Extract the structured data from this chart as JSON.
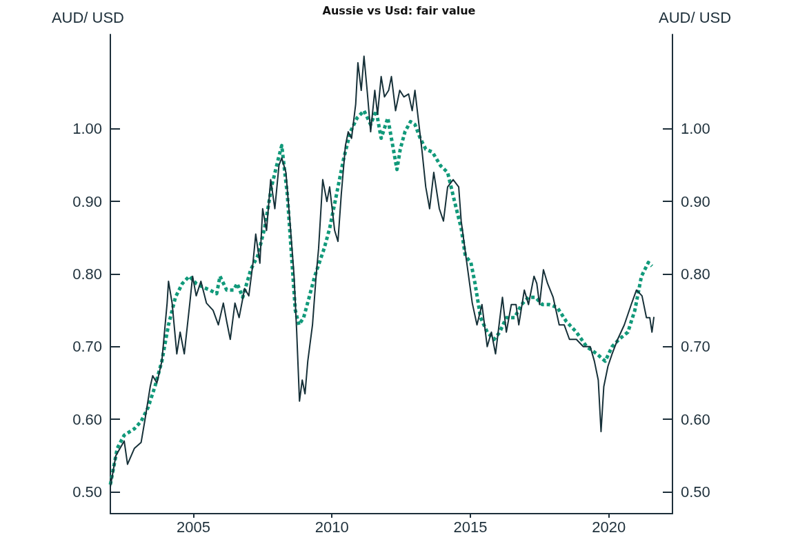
{
  "chart_data": {
    "type": "line",
    "title": "Aussie vs Usd: fair value",
    "ylabel": "AUD/ USD",
    "y2label": "AUD/ USD",
    "xlim": [
      2002,
      2022.3
    ],
    "xticks": [
      2005,
      2010,
      2015,
      2020
    ],
    "ylim": [
      0.47,
      1.13
    ],
    "yticks": [
      {
        "value": 0.5,
        "label": "0.50"
      },
      {
        "value": 0.6,
        "label": "0.60"
      },
      {
        "value": 0.7,
        "label": "0.70"
      },
      {
        "value": 0.8,
        "label": "0.80"
      },
      {
        "value": 0.9,
        "label": "0.90"
      },
      {
        "value": 1.0,
        "label": "1.00"
      }
    ],
    "y2lim": [
      0.47,
      1.13
    ],
    "y2ticks": [
      {
        "value": 0.5,
        "label": "0.50"
      },
      {
        "value": 0.6,
        "label": "0.60"
      },
      {
        "value": 0.7,
        "label": "0.70"
      },
      {
        "value": 0.8,
        "label": "0.80"
      },
      {
        "value": 0.9,
        "label": "0.90"
      },
      {
        "value": 1.0,
        "label": "1.00"
      }
    ],
    "grid": false,
    "marker": "none",
    "series": [
      {
        "color": "#163038",
        "line_style": "solid",
        "x": [
          2002.0,
          2002.2,
          2002.5,
          2002.62,
          2002.87,
          2003.11,
          2003.24,
          2003.44,
          2003.53,
          2003.68,
          2003.86,
          2004.05,
          2004.1,
          2004.23,
          2004.4,
          2004.52,
          2004.67,
          2004.87,
          2004.97,
          2005.1,
          2005.27,
          2005.47,
          2005.71,
          2005.9,
          2006.08,
          2006.2,
          2006.33,
          2006.5,
          2006.65,
          2006.85,
          2007.0,
          2007.15,
          2007.25,
          2007.4,
          2007.5,
          2007.64,
          2007.79,
          2007.94,
          2008.09,
          2008.19,
          2008.34,
          2008.49,
          2008.63,
          2008.73,
          2008.83,
          2008.93,
          2009.03,
          2009.13,
          2009.3,
          2009.43,
          2009.52,
          2009.67,
          2009.82,
          2009.92,
          2010.1,
          2010.22,
          2010.34,
          2010.49,
          2010.59,
          2010.71,
          2010.86,
          2010.94,
          2011.06,
          2011.16,
          2011.28,
          2011.4,
          2011.55,
          2011.65,
          2011.78,
          2011.9,
          2012.05,
          2012.15,
          2012.3,
          2012.45,
          2012.6,
          2012.77,
          2012.9,
          2013.0,
          2013.26,
          2013.39,
          2013.53,
          2013.68,
          2013.88,
          2014.03,
          2014.18,
          2014.38,
          2014.58,
          2014.67,
          2014.87,
          2015.07,
          2015.24,
          2015.42,
          2015.61,
          2015.76,
          2015.91,
          2016.16,
          2016.3,
          2016.48,
          2016.65,
          2016.75,
          2016.95,
          2017.1,
          2017.3,
          2017.4,
          2017.5,
          2017.64,
          2017.79,
          2017.99,
          2018.21,
          2018.39,
          2018.58,
          2018.83,
          2019.08,
          2019.33,
          2019.48,
          2019.62,
          2019.72,
          2019.82,
          2019.97,
          2020.12,
          2020.32,
          2020.56,
          2020.81,
          2021.0,
          2021.2,
          2021.36,
          2021.48,
          2021.56,
          2021.63
        ],
        "values": [
          0.507,
          0.55,
          0.57,
          0.538,
          0.56,
          0.568,
          0.597,
          0.645,
          0.66,
          0.65,
          0.68,
          0.76,
          0.79,
          0.76,
          0.69,
          0.72,
          0.69,
          0.76,
          0.797,
          0.77,
          0.79,
          0.76,
          0.75,
          0.73,
          0.76,
          0.735,
          0.71,
          0.76,
          0.74,
          0.78,
          0.77,
          0.815,
          0.855,
          0.815,
          0.89,
          0.86,
          0.93,
          0.89,
          0.95,
          0.96,
          0.94,
          0.87,
          0.8,
          0.72,
          0.625,
          0.654,
          0.635,
          0.68,
          0.73,
          0.797,
          0.835,
          0.93,
          0.9,
          0.92,
          0.86,
          0.845,
          0.91,
          0.977,
          0.996,
          0.987,
          1.034,
          1.091,
          1.053,
          1.1,
          1.05,
          0.996,
          1.053,
          1.02,
          1.072,
          1.044,
          1.053,
          1.072,
          1.025,
          1.053,
          1.044,
          1.048,
          1.025,
          1.053,
          0.968,
          0.92,
          0.89,
          0.94,
          0.89,
          0.873,
          0.92,
          0.93,
          0.92,
          0.873,
          0.816,
          0.76,
          0.73,
          0.758,
          0.7,
          0.72,
          0.69,
          0.768,
          0.72,
          0.758,
          0.758,
          0.73,
          0.778,
          0.758,
          0.797,
          0.787,
          0.758,
          0.806,
          0.787,
          0.768,
          0.73,
          0.73,
          0.71,
          0.71,
          0.7,
          0.7,
          0.68,
          0.654,
          0.583,
          0.645,
          0.673,
          0.69,
          0.71,
          0.73,
          0.758,
          0.778,
          0.77,
          0.74,
          0.74,
          0.72,
          0.741
        ]
      },
      {
        "color": "#11997a",
        "line_style": "dotted",
        "x": [
          2002.0,
          2002.25,
          2002.5,
          2002.87,
          2003.11,
          2003.36,
          2003.61,
          2003.86,
          2004.1,
          2004.35,
          2004.6,
          2004.85,
          2005.1,
          2005.34,
          2005.59,
          2005.84,
          2005.96,
          2006.2,
          2006.45,
          2006.58,
          2006.78,
          2007.07,
          2007.32,
          2007.57,
          2007.82,
          2008.06,
          2008.19,
          2008.39,
          2008.56,
          2008.68,
          2008.81,
          2008.98,
          2009.18,
          2009.38,
          2009.55,
          2009.72,
          2009.92,
          2010.17,
          2010.42,
          2010.67,
          2010.91,
          2011.16,
          2011.4,
          2011.6,
          2011.78,
          2012.02,
          2012.15,
          2012.35,
          2012.47,
          2012.64,
          2012.84,
          2013.0,
          2013.19,
          2013.39,
          2013.63,
          2013.93,
          2014.18,
          2014.43,
          2014.67,
          2014.82,
          2015.02,
          2015.17,
          2015.37,
          2015.61,
          2015.86,
          2016.06,
          2016.3,
          2016.6,
          2016.85,
          2017.1,
          2017.35,
          2017.6,
          2017.84,
          2018.14,
          2018.46,
          2018.83,
          2019.2,
          2019.57,
          2019.87,
          2020.12,
          2020.37,
          2020.69,
          2020.94,
          2021.18,
          2021.43,
          2021.56
        ],
        "values": [
          0.51,
          0.56,
          0.578,
          0.587,
          0.597,
          0.616,
          0.645,
          0.68,
          0.73,
          0.768,
          0.787,
          0.797,
          0.787,
          0.782,
          0.778,
          0.773,
          0.797,
          0.778,
          0.778,
          0.787,
          0.768,
          0.806,
          0.825,
          0.863,
          0.92,
          0.958,
          0.977,
          0.91,
          0.816,
          0.75,
          0.73,
          0.74,
          0.768,
          0.797,
          0.816,
          0.835,
          0.863,
          0.91,
          0.958,
          0.996,
          1.015,
          1.025,
          1.006,
          1.025,
          0.987,
          1.015,
          0.987,
          0.944,
          0.972,
          0.996,
          1.01,
          1.006,
          0.987,
          0.972,
          0.968,
          0.949,
          0.94,
          0.9,
          0.863,
          0.825,
          0.816,
          0.787,
          0.74,
          0.72,
          0.71,
          0.72,
          0.74,
          0.74,
          0.758,
          0.768,
          0.768,
          0.758,
          0.758,
          0.754,
          0.735,
          0.72,
          0.7,
          0.69,
          0.68,
          0.7,
          0.71,
          0.72,
          0.75,
          0.797,
          0.816,
          0.811
        ]
      }
    ]
  }
}
